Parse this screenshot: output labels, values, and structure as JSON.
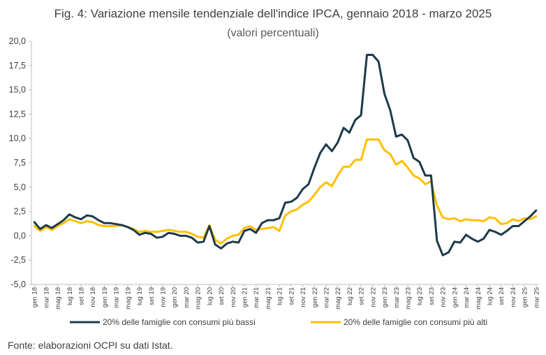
{
  "colors": {
    "low": "#1c3a4a",
    "high": "#ffc000",
    "grid": "#d9d9d9",
    "axis": "#bfbfbf"
  },
  "chart_data": {
    "type": "line",
    "title": "Fig. 4: Variazione mensile tendenziale dell'indice IPCA, gennaio 2018 - marzo 2025",
    "subtitle": "(valori percentuali)",
    "source": "Fonte: elaborazioni OCPI su dati Istat.",
    "xlabel": "",
    "ylabel": "",
    "ylim": [
      -5,
      20
    ],
    "yticks": [
      "20,0",
      "17,5",
      "15,0",
      "12,5",
      "10,0",
      "7,5",
      "5,0",
      "2,5",
      "0,0",
      "-2,5",
      "-5,0"
    ],
    "grid": false,
    "legend_position": "bottom",
    "x_tick_labels": [
      "gen 18",
      "mar 18",
      "mag 18",
      "lug 18",
      "set 18",
      "nov 18",
      "gen 19",
      "mar 19",
      "mag 19",
      "lug 19",
      "set 19",
      "nov 19",
      "gen 20",
      "mar 20",
      "mag 20",
      "lug 20",
      "set 20",
      "nov 20",
      "gen 21",
      "mar 21",
      "mag 21",
      "lug 21",
      "set 21",
      "nov 21",
      "gen 22",
      "mar 22",
      "mag 22",
      "lug 22",
      "set 22",
      "nov 22",
      "gen 23",
      "mar 23",
      "mag 23",
      "lug 23",
      "set 23",
      "nov 23",
      "gen 24",
      "mar 24",
      "mag 24",
      "lug 24",
      "set 24",
      "nov 24",
      "gen 25",
      "mar 25"
    ],
    "series": [
      {
        "name": "20% delle famiglie con consumi più bassi",
        "values": [
          1.4,
          0.7,
          1.1,
          0.8,
          1.2,
          1.6,
          2.2,
          1.9,
          1.7,
          2.1,
          2.0,
          1.6,
          1.3,
          1.3,
          1.2,
          1.1,
          0.9,
          0.6,
          0.1,
          0.3,
          0.2,
          -0.2,
          -0.1,
          0.3,
          0.2,
          0.0,
          0.0,
          -0.2,
          -0.7,
          -0.6,
          1.0,
          -0.9,
          -1.3,
          -0.8,
          -0.6,
          -0.7,
          0.5,
          0.7,
          0.3,
          1.3,
          1.6,
          1.6,
          1.8,
          3.4,
          3.5,
          3.9,
          4.8,
          5.3,
          7.0,
          8.5,
          9.4,
          8.7,
          9.6,
          11.1,
          10.6,
          11.9,
          12.4,
          18.6,
          18.6,
          17.9,
          14.6,
          12.9,
          10.2,
          10.4,
          9.8,
          8.0,
          7.6,
          6.2,
          6.2,
          -0.5,
          -2.0,
          -1.7,
          -0.6,
          -0.7,
          0.1,
          -0.3,
          -0.6,
          -0.3,
          0.6,
          0.4,
          0.1,
          0.5,
          1.0,
          1.0,
          1.5,
          2.0,
          2.6
        ]
      },
      {
        "name": "20% delle famiglie con consumi più alti",
        "values": [
          1.0,
          0.5,
          0.9,
          0.6,
          1.0,
          1.3,
          1.7,
          1.5,
          1.3,
          1.5,
          1.4,
          1.1,
          1.0,
          1.0,
          1.0,
          1.1,
          0.9,
          0.7,
          0.4,
          0.5,
          0.4,
          0.4,
          0.5,
          0.6,
          0.5,
          0.4,
          0.4,
          0.2,
          -0.1,
          -0.2,
          1.1,
          -0.4,
          -0.8,
          -0.3,
          0.0,
          0.1,
          0.8,
          1.0,
          0.6,
          0.7,
          0.8,
          0.9,
          0.5,
          2.1,
          2.5,
          2.7,
          3.2,
          3.5,
          4.2,
          5.0,
          5.5,
          5.1,
          6.2,
          7.1,
          7.1,
          7.8,
          7.8,
          9.9,
          9.9,
          9.9,
          8.8,
          8.4,
          7.3,
          7.7,
          7.0,
          6.2,
          5.9,
          5.3,
          5.6,
          3.1,
          1.9,
          1.7,
          1.8,
          1.5,
          1.7,
          1.6,
          1.6,
          1.5,
          1.9,
          1.8,
          1.2,
          1.3,
          1.7,
          1.5,
          1.8,
          1.7,
          2.0
        ]
      }
    ]
  }
}
